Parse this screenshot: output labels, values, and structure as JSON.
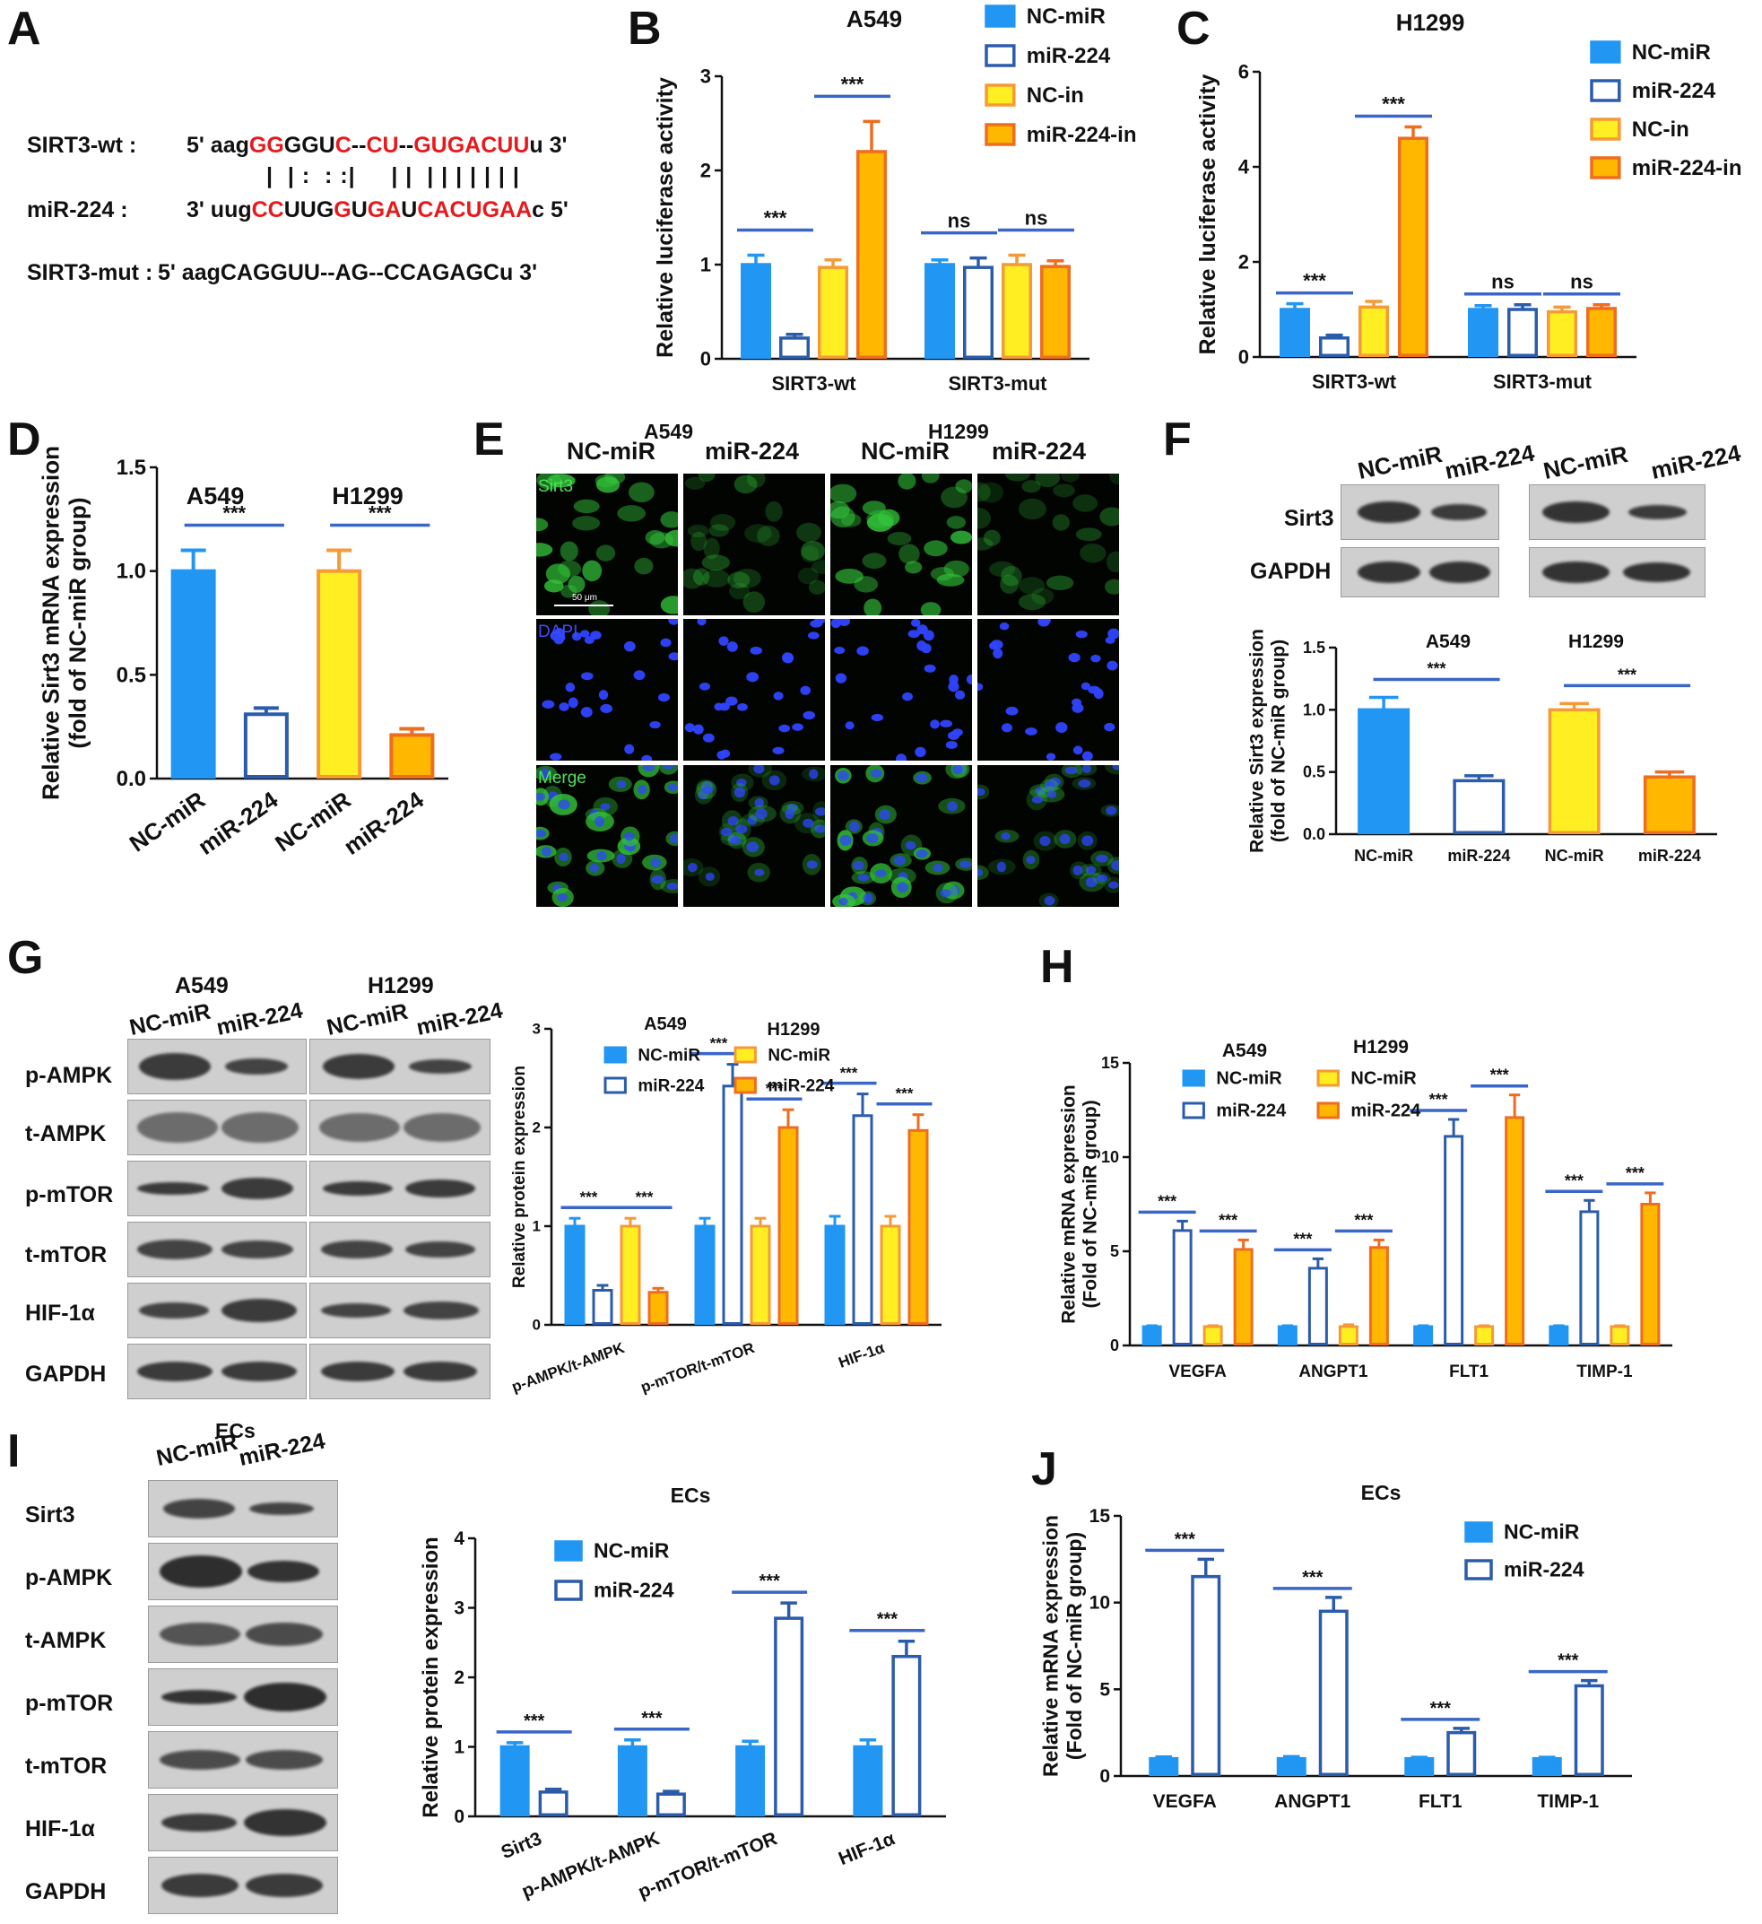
{
  "colors": {
    "blue": "#2196f3",
    "outline": "#2b5cab",
    "yellow": "#ffee22",
    "yellow_edge": "#f59a36",
    "orange": "#ffb700",
    "orange_edge": "#ee6d1f",
    "sig": "#3a66c8",
    "red": "#e8191c"
  },
  "panels": {
    "A": "A",
    "B": "B",
    "C": "C",
    "D": "D",
    "E": "E",
    "F": "F",
    "G": "G",
    "H": "H",
    "I": "I",
    "J": "J"
  },
  "sequence": {
    "wt_label": "SIRT3-wt :",
    "mir_label": "miR-224 :",
    "mut_label": "SIRT3-mut :",
    "wt": [
      [
        "5' aag",
        0
      ],
      [
        "GG",
        1
      ],
      [
        "GGU",
        0
      ],
      [
        "C",
        1
      ],
      [
        "--",
        0
      ],
      [
        "CU",
        1
      ],
      [
        "--",
        0
      ],
      [
        "GUGACUU",
        1
      ],
      [
        "u 3'",
        0
      ]
    ],
    "pairing": "|  | :  : :|     | |  | | | | | | |",
    "mir": [
      [
        "3' uug",
        0
      ],
      [
        "CC",
        1
      ],
      [
        "UUG",
        0
      ],
      [
        "G",
        1
      ],
      [
        "U",
        0
      ],
      [
        "GA",
        1
      ],
      [
        "U",
        0
      ],
      [
        "CACUGAA",
        1
      ],
      [
        "c 5'",
        0
      ]
    ],
    "mut": "5' aagCAGGUU--AG--CCAGAGCu 3'"
  },
  "microscopy": {
    "header_a549": "A549",
    "header_h1299": "H1299",
    "cols": [
      "NC-miR",
      "miR-224",
      "NC-miR",
      "miR-224"
    ],
    "rows": [
      "Sirt3",
      "DAPI",
      "Merge"
    ],
    "scale_bar": "50 μm"
  },
  "blots": {
    "F": {
      "cols": [
        "NC-miR",
        "miR-224",
        "NC-miR",
        "miR-224"
      ],
      "rows": [
        "Sirt3",
        "GAPDH"
      ]
    },
    "G": {
      "cell_lines": [
        "A549",
        "H1299"
      ],
      "cols": [
        "NC-miR",
        "miR-224",
        "NC-miR",
        "miR-224"
      ],
      "rows": [
        "p-AMPK",
        "t-AMPK",
        "p-mTOR",
        "t-mTOR",
        "HIF-1α",
        "GAPDH"
      ]
    },
    "I": {
      "header": "ECs",
      "cols": [
        "NC-miR",
        "miR-224"
      ],
      "rows": [
        "Sirt3",
        "p-AMPK",
        "t-AMPK",
        "p-mTOR",
        "t-mTOR",
        "HIF-1α",
        "GAPDH"
      ]
    }
  },
  "chart_data": [
    {
      "id": "B",
      "type": "bar",
      "title": "A549",
      "ylabel": "Relative luciferase activity",
      "ylim": [
        0,
        3
      ],
      "yticks": [
        0,
        1,
        2,
        3
      ],
      "categories": [
        "SIRT3-wt",
        "SIRT3-mut"
      ],
      "series": [
        {
          "name": "NC-miR",
          "style": "blue",
          "values": [
            1.0,
            1.0
          ],
          "err": [
            0.1,
            0.05
          ]
        },
        {
          "name": "miR-224",
          "style": "outline",
          "values": [
            0.22,
            0.97
          ],
          "err": [
            0.04,
            0.1
          ]
        },
        {
          "name": "NC-in",
          "style": "yellow",
          "values": [
            0.97,
            1.0
          ],
          "err": [
            0.08,
            0.1
          ]
        },
        {
          "name": "miR-224-in",
          "style": "orange",
          "values": [
            2.2,
            0.98
          ],
          "err": [
            0.32,
            0.06
          ]
        }
      ],
      "sig": [
        {
          "cat": 0,
          "a": 0,
          "b": 1,
          "text": "***"
        },
        {
          "cat": 0,
          "a": 2,
          "b": 3,
          "text": "***"
        },
        {
          "cat": 1,
          "a": 0,
          "b": 1,
          "text": "ns"
        },
        {
          "cat": 1,
          "a": 2,
          "b": 3,
          "text": "ns"
        }
      ]
    },
    {
      "id": "C",
      "type": "bar",
      "title": "H1299",
      "ylabel": "Relative luciferase activity",
      "ylim": [
        0,
        6
      ],
      "yticks": [
        0,
        2,
        4,
        6
      ],
      "categories": [
        "SIRT3-wt",
        "SIRT3-mut"
      ],
      "series": [
        {
          "name": "NC-miR",
          "style": "blue",
          "values": [
            1.0,
            1.0
          ],
          "err": [
            0.12,
            0.08
          ]
        },
        {
          "name": "miR-224",
          "style": "outline",
          "values": [
            0.4,
            1.0
          ],
          "err": [
            0.06,
            0.1
          ]
        },
        {
          "name": "NC-in",
          "style": "yellow",
          "values": [
            1.05,
            0.95
          ],
          "err": [
            0.12,
            0.1
          ]
        },
        {
          "name": "miR-224-in",
          "style": "orange",
          "values": [
            4.6,
            1.02
          ],
          "err": [
            0.24,
            0.08
          ]
        }
      ],
      "sig": [
        {
          "cat": 0,
          "a": 0,
          "b": 1,
          "text": "***"
        },
        {
          "cat": 0,
          "a": 2,
          "b": 3,
          "text": "***"
        },
        {
          "cat": 1,
          "a": 0,
          "b": 1,
          "text": "ns"
        },
        {
          "cat": 1,
          "a": 2,
          "b": 3,
          "text": "ns"
        }
      ]
    },
    {
      "id": "D",
      "type": "bar",
      "ylabel": "Relative Sirt3 mRNA expression\n(fold of NC-miR group)",
      "ylim": [
        0,
        1.5
      ],
      "yticks": [
        "0.0",
        "0.5",
        "1.0",
        "1.5"
      ],
      "groups": [
        "A549",
        "H1299"
      ],
      "categories": [
        "NC-miR",
        "miR-224",
        "NC-miR",
        "miR-224"
      ],
      "styles": [
        "blue",
        "outline",
        "yellow",
        "orange"
      ],
      "values": [
        1.0,
        0.31,
        1.0,
        0.21
      ],
      "err": [
        0.1,
        0.03,
        0.1,
        0.03
      ],
      "sig": [
        {
          "a": 0,
          "b": 1,
          "text": "***"
        },
        {
          "a": 2,
          "b": 3,
          "text": "***"
        }
      ]
    },
    {
      "id": "F",
      "type": "bar",
      "ylabel": "Relative Sirt3 expression\n(fold of NC-miR group)",
      "ylim": [
        0,
        1.5
      ],
      "yticks": [
        "0.0",
        "0.5",
        "1.0",
        "1.5"
      ],
      "groups": [
        "A549",
        "H1299"
      ],
      "categories": [
        "NC-miR",
        "miR-224",
        "NC-miR",
        "miR-224"
      ],
      "styles": [
        "blue",
        "outline",
        "yellow",
        "orange"
      ],
      "values": [
        1.0,
        0.43,
        1.0,
        0.46
      ],
      "err": [
        0.1,
        0.04,
        0.05,
        0.04
      ],
      "sig": [
        {
          "a": 0,
          "b": 1,
          "text": "***"
        },
        {
          "a": 2,
          "b": 3,
          "text": "***"
        }
      ]
    },
    {
      "id": "G",
      "type": "bar",
      "ylabel": "Relative protein expression",
      "ylim": [
        0,
        3
      ],
      "yticks": [
        0,
        1,
        2,
        3
      ],
      "legend_headers": [
        "A549",
        "H1299"
      ],
      "categories": [
        "p-AMPK/t-AMPK",
        "p-mTOR/t-mTOR",
        "HIF-1α"
      ],
      "series": [
        {
          "name": "NC-miR",
          "style": "blue",
          "values": [
            1.0,
            1.0,
            1.0
          ],
          "err": [
            0.08,
            0.08,
            0.1
          ]
        },
        {
          "name": "miR-224",
          "style": "outline",
          "values": [
            0.35,
            2.42,
            2.12
          ],
          "err": [
            0.05,
            0.22,
            0.22
          ]
        },
        {
          "name": "NC-miR",
          "style": "yellow",
          "values": [
            1.0,
            1.0,
            1.0
          ],
          "err": [
            0.08,
            0.08,
            0.1
          ]
        },
        {
          "name": "miR-224",
          "style": "orange",
          "values": [
            0.33,
            2.0,
            1.97
          ],
          "err": [
            0.04,
            0.18,
            0.16
          ]
        }
      ],
      "sig": [
        {
          "cat": 0,
          "a": 0,
          "b": 1,
          "text": "***"
        },
        {
          "cat": 0,
          "a": 2,
          "b": 3,
          "text": "***"
        },
        {
          "cat": 1,
          "a": 0,
          "b": 1,
          "text": "***"
        },
        {
          "cat": 1,
          "a": 2,
          "b": 3,
          "text": "***"
        },
        {
          "cat": 2,
          "a": 0,
          "b": 1,
          "text": "***"
        },
        {
          "cat": 2,
          "a": 2,
          "b": 3,
          "text": "***"
        }
      ]
    },
    {
      "id": "H",
      "type": "bar",
      "ylabel": "Relative mRNA expression\n(Fold of NC-miR group)",
      "ylim": [
        0,
        15
      ],
      "yticks": [
        0,
        5,
        10,
        15
      ],
      "legend_headers": [
        "A549",
        "H1299"
      ],
      "categories": [
        "VEGFA",
        "ANGPT1",
        "FLT1",
        "TIMP-1"
      ],
      "series": [
        {
          "name": "NC-miR",
          "style": "blue",
          "values": [
            1.0,
            1.0,
            1.0,
            1.0
          ],
          "err": [
            0.05,
            0.05,
            0.05,
            0.05
          ]
        },
        {
          "name": "miR-224",
          "style": "outline",
          "values": [
            6.1,
            4.1,
            11.1,
            7.1
          ],
          "err": [
            0.5,
            0.5,
            0.9,
            0.6
          ]
        },
        {
          "name": "NC-miR",
          "style": "yellow",
          "values": [
            1.0,
            1.0,
            1.0,
            1.0
          ],
          "err": [
            0.05,
            0.1,
            0.05,
            0.05
          ]
        },
        {
          "name": "miR-224",
          "style": "orange",
          "values": [
            5.1,
            5.2,
            12.1,
            7.5
          ],
          "err": [
            0.5,
            0.4,
            1.2,
            0.6
          ]
        }
      ],
      "sig": [
        {
          "cat": 0,
          "a": 0,
          "b": 1,
          "text": "***"
        },
        {
          "cat": 0,
          "a": 2,
          "b": 3,
          "text": "***"
        },
        {
          "cat": 1,
          "a": 0,
          "b": 1,
          "text": "***"
        },
        {
          "cat": 1,
          "a": 2,
          "b": 3,
          "text": "***"
        },
        {
          "cat": 2,
          "a": 0,
          "b": 1,
          "text": "***"
        },
        {
          "cat": 2,
          "a": 2,
          "b": 3,
          "text": "***"
        },
        {
          "cat": 3,
          "a": 0,
          "b": 1,
          "text": "***"
        },
        {
          "cat": 3,
          "a": 2,
          "b": 3,
          "text": "***"
        }
      ]
    },
    {
      "id": "I",
      "type": "bar",
      "title": "ECs",
      "ylabel": "Relative protein expression",
      "ylim": [
        0,
        4
      ],
      "yticks": [
        0,
        1,
        2,
        3,
        4
      ],
      "categories": [
        "Sirt3",
        "p-AMPK/t-AMPK",
        "p-mTOR/t-mTOR",
        "HIF-1α"
      ],
      "series": [
        {
          "name": "NC-miR",
          "style": "blue",
          "values": [
            1.0,
            1.0,
            1.0,
            1.0
          ],
          "err": [
            0.06,
            0.1,
            0.08,
            0.1
          ]
        },
        {
          "name": "miR-224",
          "style": "outline",
          "values": [
            0.35,
            0.32,
            2.85,
            2.3
          ],
          "err": [
            0.04,
            0.04,
            0.22,
            0.22
          ]
        }
      ],
      "sig": [
        {
          "cat": 0,
          "a": 0,
          "b": 1,
          "text": "***"
        },
        {
          "cat": 1,
          "a": 0,
          "b": 1,
          "text": "***"
        },
        {
          "cat": 2,
          "a": 0,
          "b": 1,
          "text": "***"
        },
        {
          "cat": 3,
          "a": 0,
          "b": 1,
          "text": "***"
        }
      ]
    },
    {
      "id": "J",
      "type": "bar",
      "title": "ECs",
      "ylabel": "Relative mRNA expression\n(Fold of NC-miR group)",
      "ylim": [
        0,
        15
      ],
      "yticks": [
        0,
        5,
        10,
        15
      ],
      "categories": [
        "VEGFA",
        "ANGPT1",
        "FLT1",
        "TIMP-1"
      ],
      "series": [
        {
          "name": "NC-miR",
          "style": "blue",
          "values": [
            1.0,
            1.0,
            1.0,
            1.0
          ],
          "err": [
            0.1,
            0.12,
            0.08,
            0.08
          ]
        },
        {
          "name": "miR-224",
          "style": "outline",
          "values": [
            11.5,
            9.5,
            2.5,
            5.2
          ],
          "err": [
            1.0,
            0.8,
            0.25,
            0.3
          ]
        }
      ],
      "sig": [
        {
          "cat": 0,
          "a": 0,
          "b": 1,
          "text": "***"
        },
        {
          "cat": 1,
          "a": 0,
          "b": 1,
          "text": "***"
        },
        {
          "cat": 2,
          "a": 0,
          "b": 1,
          "text": "***"
        },
        {
          "cat": 3,
          "a": 0,
          "b": 1,
          "text": "***"
        }
      ]
    }
  ]
}
